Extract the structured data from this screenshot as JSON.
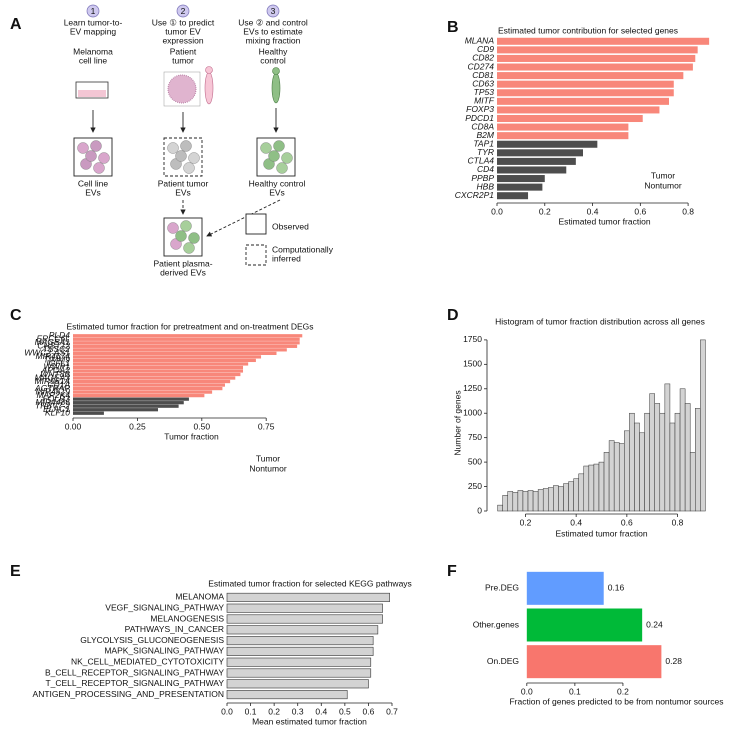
{
  "panel_labels": [
    "A",
    "B",
    "C",
    "D",
    "E",
    "F"
  ],
  "diagram": {
    "steps": [
      {
        "number": "1",
        "lines": [
          "Learn tumor-to-",
          "EV mapping"
        ]
      },
      {
        "number": "2",
        "lines": [
          "Use ① to predict",
          "tumor EV",
          "expression"
        ]
      },
      {
        "number": "3",
        "lines": [
          "Use ② and control",
          "EVs to estimate",
          "mixing fraction"
        ]
      }
    ],
    "sources": [
      [
        "Melanoma",
        "cell line"
      ],
      [
        "Patient",
        "tumor"
      ],
      [
        "Healthy",
        "control"
      ]
    ],
    "evs": [
      [
        "Cell line",
        "EVs"
      ],
      [
        "Patient tumor",
        "EVs"
      ],
      [
        "Healthy control",
        "EVs"
      ],
      [
        "Patient plasma-",
        "derived EVs"
      ]
    ],
    "legend": {
      "observed": "Observed",
      "inferred": [
        "Computationally",
        "inferred"
      ]
    }
  },
  "chart_data": [
    {
      "type": "hbar",
      "title": "Estimated tumor contribution for selected genes",
      "xlabel": "Estimated tumor fraction",
      "categories": [
        "MLANA",
        "CD9",
        "CD82",
        "CD274",
        "CD81",
        "CD63",
        "TP53",
        "MITF",
        "FOXP3",
        "PDCD1",
        "CD8A",
        "B2M",
        "TAP1",
        "TYR",
        "CTLA4",
        "CD4",
        "PPBP",
        "HBB",
        "CXCR2P1"
      ],
      "series": [
        {
          "name": "Tumor",
          "color": "#f8877a",
          "values": [
            0.888,
            0.84,
            0.83,
            0.82,
            0.78,
            0.74,
            0.74,
            0.72,
            0.68,
            0.61,
            0.55,
            0.55,
            null,
            null,
            null,
            null,
            null,
            null,
            null
          ]
        },
        {
          "name": "Nontumor",
          "color": "#4d4d4d",
          "values": [
            null,
            null,
            null,
            null,
            null,
            null,
            null,
            null,
            null,
            null,
            null,
            null,
            0.42,
            0.36,
            0.33,
            0.29,
            0.2,
            0.19,
            0.13
          ]
        }
      ],
      "xlim": [
        0,
        0.9
      ],
      "xticks": [
        {
          "value": 0,
          "label": "0.0"
        },
        0.2,
        0.4,
        0.6,
        0.8
      ]
    },
    {
      "type": "hbar",
      "title": "Estimated tumor fraction for pretreatment and on-treatment DEGs",
      "xlabel": "Tumor fraction",
      "categories": [
        "PLD4",
        "ERCC6L",
        "MAGEA1",
        "CHST12",
        "TSSC2",
        "WWC2-AS1",
        "MIR4674",
        "TIMM9",
        "IGFL1",
        "WWP1",
        "APOA2",
        "WNT8B",
        "MAGEA3",
        "MIR551A",
        "CD1A",
        "AGTRAP",
        "MIR4519",
        "MAP2K4",
        "FOLR3",
        "MIR4486",
        "TRBV7-2",
        "ELAC1",
        "KLF10"
      ],
      "series": [
        {
          "name": "Tumor",
          "color": "#f8877a",
          "values": [
            0.89,
            0.88,
            0.88,
            0.87,
            0.83,
            0.79,
            0.73,
            0.71,
            0.68,
            0.66,
            0.66,
            0.65,
            0.63,
            0.61,
            0.59,
            0.58,
            0.54,
            0.51,
            null,
            null,
            null,
            null,
            null
          ]
        },
        {
          "name": "Nontumor",
          "color": "#4d4d4d",
          "values": [
            null,
            null,
            null,
            null,
            null,
            null,
            null,
            null,
            null,
            null,
            null,
            null,
            null,
            null,
            null,
            null,
            null,
            null,
            0.45,
            0.43,
            0.41,
            0.33,
            0.12
          ]
        }
      ],
      "xlim": [
        0,
        0.92
      ],
      "xticks": [
        {
          "value": 0,
          "label": "0.00"
        },
        {
          "value": 0.25,
          "label": "0.25"
        },
        {
          "value": 0.5,
          "label": "0.50"
        },
        {
          "value": 0.75,
          "label": "0.75"
        }
      ]
    },
    {
      "type": "histogram",
      "title": "Histogram of tumor fraction distribution across all genes",
      "xlabel": "Estimated tumor fraction",
      "ylabel": "Number of genes",
      "bins": [
        0.09,
        0.11,
        0.13,
        0.15,
        0.17,
        0.19,
        0.21,
        0.23,
        0.25,
        0.27,
        0.29,
        0.31,
        0.33,
        0.35,
        0.37,
        0.39,
        0.41,
        0.43,
        0.45,
        0.47,
        0.49,
        0.51,
        0.53,
        0.55,
        0.57,
        0.59,
        0.61,
        0.63,
        0.65,
        0.67,
        0.69,
        0.71,
        0.73,
        0.75,
        0.77,
        0.79,
        0.81,
        0.83,
        0.85,
        0.87,
        0.89,
        0.91
      ],
      "values": [
        60,
        160,
        200,
        190,
        210,
        200,
        210,
        200,
        220,
        230,
        240,
        260,
        250,
        280,
        300,
        330,
        380,
        460,
        470,
        480,
        500,
        600,
        720,
        700,
        690,
        820,
        1000,
        900,
        800,
        1000,
        1200,
        1100,
        1000,
        1300,
        900,
        1000,
        1250,
        1100,
        600,
        1050,
        1750
      ],
      "color": "#d3d3d3",
      "xlim": [
        0.06,
        0.94
      ],
      "xticks": [
        0.2,
        0.4,
        0.6,
        0.8
      ],
      "ylim": [
        0,
        1800
      ],
      "yticks": [
        0,
        250,
        500,
        750,
        1000,
        1250,
        1500,
        1750
      ]
    },
    {
      "type": "hbar",
      "title": "Estimated tumor fraction for selected KEGG pathways",
      "xlabel": "Mean estimated tumor fraction",
      "categories": [
        "MELANOMA",
        "VEGF_SIGNALING_PATHWAY",
        "MELANOGENESIS",
        "PATHWAYS_IN_CANCER",
        "GLYCOLYSIS_GLUCONEOGENESIS",
        "MAPK_SIGNALING_PATHWAY",
        "NK_CELL_MEDIATED_CYTOTOXICITY",
        "B_CELL_RECEPTOR_SIGNALING_PATHWAY",
        "T_CELL_RECEPTOR_SIGNALING_PATHWAY",
        "ANTIGEN_PROCESSING_AND_PRESENTATION"
      ],
      "values": [
        0.69,
        0.66,
        0.66,
        0.64,
        0.62,
        0.62,
        0.61,
        0.61,
        0.6,
        0.51
      ],
      "color": "#d3d3d3",
      "xlim": [
        0,
        0.7
      ],
      "xticks": [
        {
          "value": 0,
          "label": "0.0"
        },
        0.1,
        0.2,
        0.3,
        0.4,
        0.5,
        0.6,
        0.7
      ]
    },
    {
      "type": "hbar",
      "xlabel": "Fraction of genes predicted to be from nontumor sources",
      "categories": [
        "Pre.DEG",
        "Other.genes",
        "On.DEG"
      ],
      "values": [
        0.16,
        0.24,
        0.28
      ],
      "colors": [
        "#619cff",
        "#00ba38",
        "#f8766d"
      ],
      "data_labels": true,
      "xlim": [
        -0.01,
        0.3
      ],
      "xticks": [
        {
          "value": 0,
          "label": "0.0"
        },
        0.1,
        0.2
      ]
    }
  ]
}
